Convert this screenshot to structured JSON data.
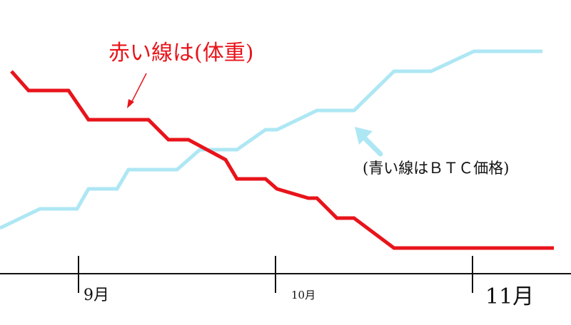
{
  "chart_data": {
    "type": "line",
    "title": "",
    "xlabel": "",
    "ylabel": "",
    "x_ticks": [
      "9月",
      "10月",
      "11月"
    ],
    "grid": false,
    "series": [
      {
        "name": "赤い線は(体重)",
        "color": "#e8141b",
        "points": [
          [
            0.02,
            100
          ],
          [
            0.05,
            127
          ],
          [
            0.12,
            127
          ],
          [
            0.155,
            168
          ],
          [
            0.26,
            168
          ],
          [
            0.295,
            196
          ],
          [
            0.33,
            196
          ],
          [
            0.395,
            224
          ],
          [
            0.415,
            251
          ],
          [
            0.465,
            251
          ],
          [
            0.485,
            265
          ],
          [
            0.54,
            278
          ],
          [
            0.555,
            278
          ],
          [
            0.59,
            306
          ],
          [
            0.62,
            306
          ],
          [
            0.69,
            348
          ],
          [
            0.97,
            348
          ]
        ]
      },
      {
        "name": "青い線はＢＴＣ価格",
        "color": "#aee7f4",
        "points": [
          [
            0.0,
            320
          ],
          [
            0.07,
            293
          ],
          [
            0.135,
            293
          ],
          [
            0.155,
            265
          ],
          [
            0.205,
            265
          ],
          [
            0.225,
            238
          ],
          [
            0.31,
            238
          ],
          [
            0.35,
            210
          ],
          [
            0.415,
            210
          ],
          [
            0.465,
            182
          ],
          [
            0.485,
            182
          ],
          [
            0.555,
            155
          ],
          [
            0.62,
            155
          ],
          [
            0.69,
            100
          ],
          [
            0.755,
            100
          ],
          [
            0.83,
            72
          ],
          [
            0.95,
            72
          ]
        ]
      }
    ],
    "annotations": [
      {
        "text": "赤い線は(体重)",
        "target_series": "赤い線は(体重)"
      },
      {
        "text": "(青い線はＢＴＣ価格)",
        "target_series": "青い線はＢＴＣ価格"
      }
    ]
  }
}
